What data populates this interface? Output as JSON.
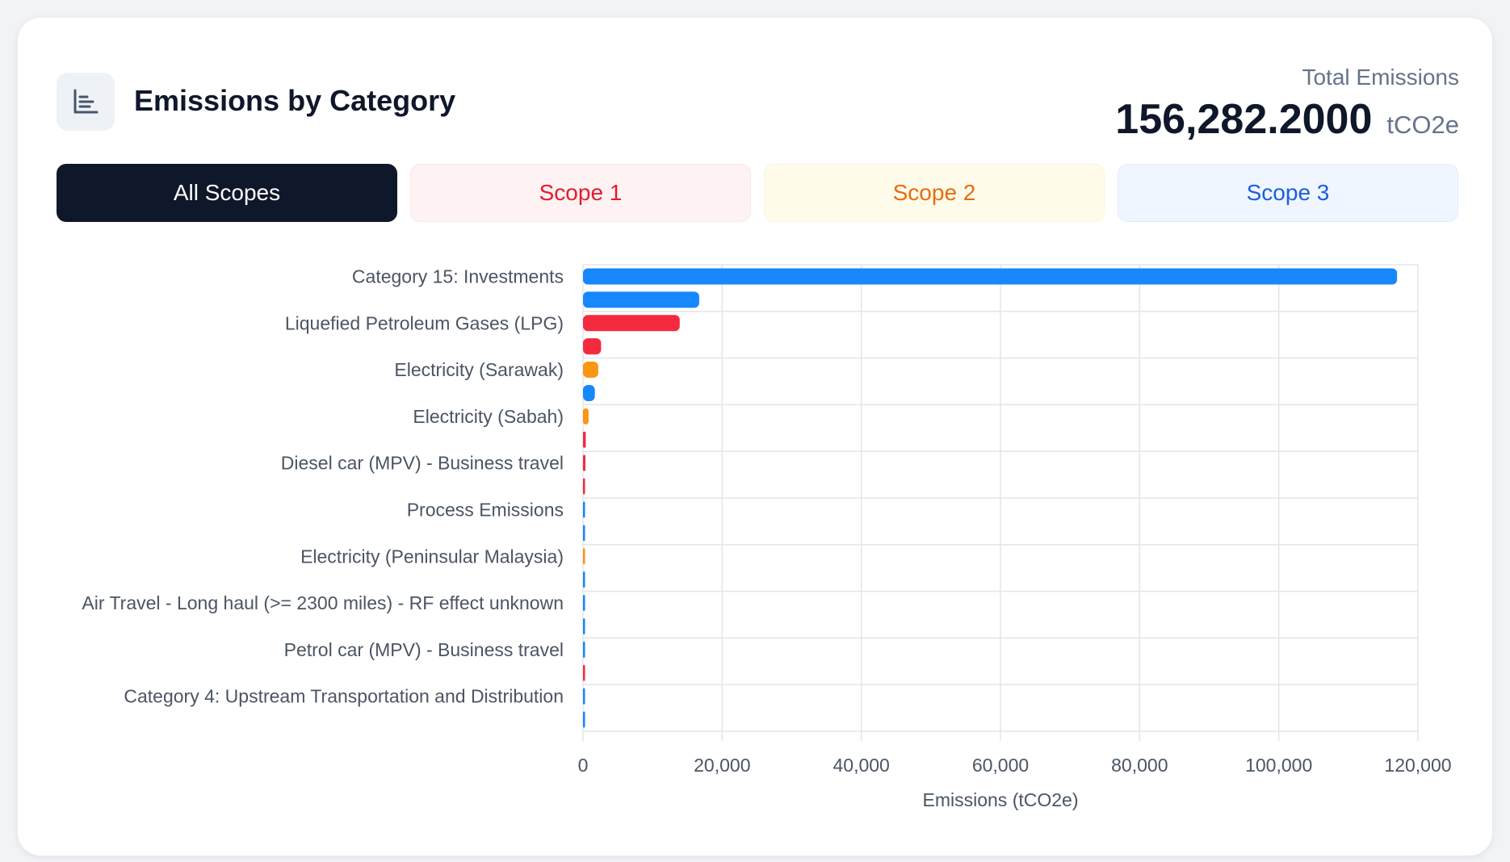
{
  "header": {
    "title": "Emissions by Category",
    "icon": "bar-chart-icon",
    "total_label": "Total Emissions",
    "total_value": "156,282.2000",
    "total_unit": "tCO2e"
  },
  "tabs": [
    {
      "label": "All Scopes",
      "active": true
    },
    {
      "label": "Scope 1",
      "active": false
    },
    {
      "label": "Scope 2",
      "active": false
    },
    {
      "label": "Scope 3",
      "active": false
    }
  ],
  "colors": {
    "scope1": "#f42a3f",
    "scope2": "#fb9514",
    "scope3": "#1787fd",
    "grid": "#e3e5e8"
  },
  "chart_data": {
    "type": "bar",
    "orientation": "horizontal",
    "xlabel": "Emissions (tCO2e)",
    "xlim": [
      0,
      120000
    ],
    "xticks": [
      0,
      20000,
      40000,
      60000,
      80000,
      100000,
      120000
    ],
    "xtick_labels": [
      "0",
      "20,000",
      "40,000",
      "60,000",
      "80,000",
      "100,000",
      "120,000"
    ],
    "grid": true,
    "bars": [
      {
        "label": "Category 15: Investments",
        "value": 117000,
        "scope": 3
      },
      {
        "label": "",
        "value": 16700,
        "scope": 3
      },
      {
        "label": "Liquefied Petroleum Gases (LPG)",
        "value": 13900,
        "scope": 1
      },
      {
        "label": "",
        "value": 2600,
        "scope": 1
      },
      {
        "label": "Electricity (Sarawak)",
        "value": 2200,
        "scope": 2
      },
      {
        "label": "",
        "value": 1700,
        "scope": 3
      },
      {
        "label": "Electricity (Sabah)",
        "value": 800,
        "scope": 2
      },
      {
        "label": "",
        "value": 400,
        "scope": 1
      },
      {
        "label": "Diesel car (MPV) - Business travel",
        "value": 350,
        "scope": 1
      },
      {
        "label": "",
        "value": 150,
        "scope": 1
      },
      {
        "label": "Process Emissions",
        "value": 120,
        "scope": 3
      },
      {
        "label": "",
        "value": 100,
        "scope": 3
      },
      {
        "label": "Electricity (Peninsular Malaysia)",
        "value": 150,
        "scope": 2
      },
      {
        "label": "",
        "value": 90,
        "scope": 3
      },
      {
        "label": "Air Travel - Long haul (>= 2300 miles) - RF effect unknown",
        "value": 90,
        "scope": 3
      },
      {
        "label": "",
        "value": 80,
        "scope": 3
      },
      {
        "label": "Petrol car (MPV) - Business travel",
        "value": 80,
        "scope": 3
      },
      {
        "label": "",
        "value": 70,
        "scope": 1
      },
      {
        "label": "Category 4: Upstream Transportation and Distribution",
        "value": 70,
        "scope": 3
      },
      {
        "label": "",
        "value": 60,
        "scope": 3
      }
    ]
  }
}
